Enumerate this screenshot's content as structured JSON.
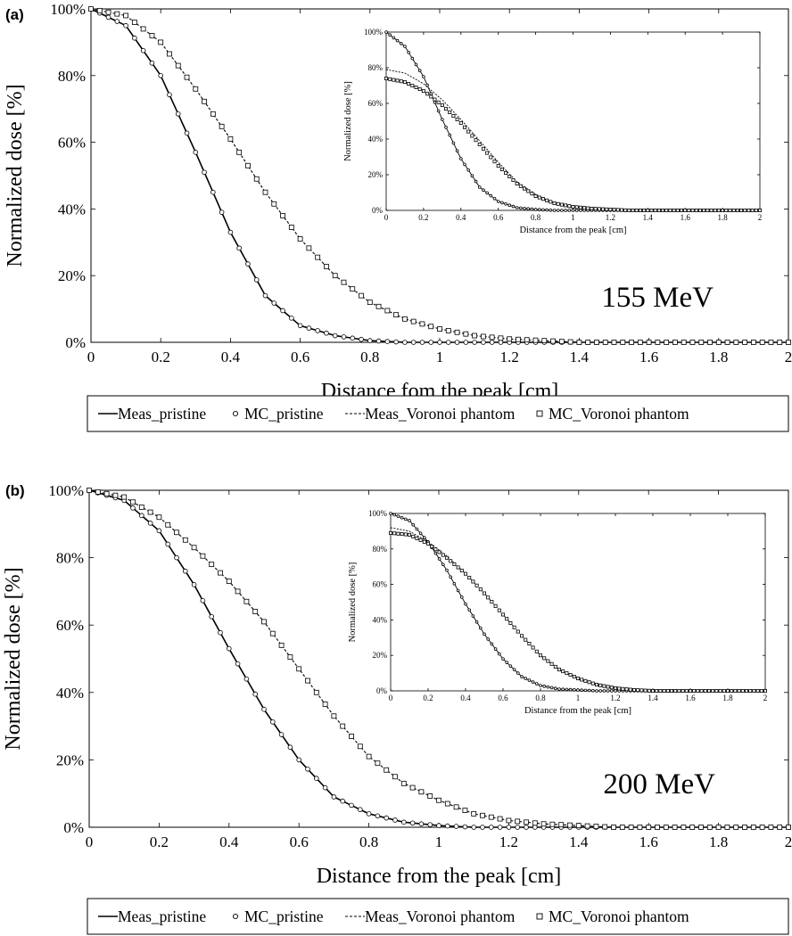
{
  "legend": {
    "meas_pristine": "Meas_pristine",
    "mc_pristine": "MC_pristine",
    "meas_voronoi": "Meas_Voronoi phantom",
    "mc_voronoi": "MC_Voronoi phantom"
  },
  "chart_data": [
    {
      "panel_label": "(a)",
      "type": "line",
      "annotation": "155 MeV",
      "xlabel": "Distance fom the peak [cm]",
      "ylabel": "Normalized dose [%]",
      "xlim": [
        0,
        2
      ],
      "ylim": [
        0,
        100
      ],
      "xticks": [
        "0",
        "0.2",
        "0.4",
        "0.6",
        "0.8",
        "1",
        "1.2",
        "1.4",
        "1.6",
        "1.8",
        "2"
      ],
      "yticks": [
        "0%",
        "20%",
        "40%",
        "60%",
        "80%",
        "100%"
      ],
      "x": [
        0,
        0.1,
        0.2,
        0.3,
        0.4,
        0.5,
        0.6,
        0.7,
        0.8,
        0.9,
        1.0,
        1.1,
        1.2,
        1.3,
        1.4,
        1.5,
        1.6,
        1.7,
        1.8,
        1.9,
        2.0
      ],
      "series": [
        {
          "name": "Meas_pristine",
          "style": "solid",
          "values": [
            100,
            95,
            80,
            57,
            33,
            14,
            5,
            2,
            0.5,
            0,
            0,
            0,
            0,
            0,
            0,
            0,
            0,
            0,
            0,
            0,
            0
          ]
        },
        {
          "name": "MC_pristine",
          "style": "circle",
          "values": [
            100,
            95,
            80,
            57,
            33,
            14,
            5,
            2,
            0.5,
            0,
            0,
            0,
            0,
            0,
            0,
            0,
            0,
            0,
            0,
            0,
            0
          ]
        },
        {
          "name": "Meas_Voronoi phantom",
          "style": "dashed",
          "values": [
            100,
            98,
            90,
            76,
            61,
            45,
            31,
            20,
            12,
            7,
            4,
            2,
            1,
            0.5,
            0,
            0,
            0,
            0,
            0,
            0,
            0
          ]
        },
        {
          "name": "MC_Voronoi phantom",
          "style": "square",
          "values": [
            100,
            98,
            90,
            76,
            61,
            45,
            31,
            20,
            12,
            7,
            4,
            2,
            1,
            0.5,
            0,
            0,
            0,
            0,
            0,
            0,
            0
          ]
        }
      ],
      "inset": {
        "xlabel": "Distance from the peak [cm]",
        "ylabel": "Normalized dose [%]",
        "xlim": [
          0,
          2
        ],
        "ylim": [
          0,
          100
        ],
        "xticks": [
          "0",
          "0.2",
          "0.4",
          "0.6",
          "0.8",
          "1",
          "1.2",
          "1.4",
          "1.6",
          "1.8",
          "2"
        ],
        "yticks": [
          "0%",
          "20%",
          "40%",
          "60%",
          "80%",
          "100%"
        ],
        "x": [
          0,
          0.1,
          0.2,
          0.3,
          0.4,
          0.5,
          0.6,
          0.7,
          0.8,
          0.9,
          1.0,
          1.1,
          1.2,
          1.3,
          1.4,
          1.5,
          1.6,
          1.7,
          1.8,
          1.9,
          2.0
        ],
        "series": [
          {
            "name": "Meas_pristine",
            "style": "solid",
            "values": [
              100,
              92,
              75,
              51,
              29,
              13,
              5,
              1.5,
              0.5,
              0,
              0,
              0,
              0,
              0,
              0,
              0,
              0,
              0,
              0,
              0,
              0
            ]
          },
          {
            "name": "MC_pristine",
            "style": "circle",
            "values": [
              100,
              92,
              75,
              51,
              29,
              13,
              5,
              1.5,
              0.5,
              0,
              0,
              0,
              0,
              0,
              0,
              0,
              0,
              0,
              0,
              0,
              0
            ]
          },
          {
            "name": "Meas_Voronoi phantom",
            "style": "dashed",
            "values": [
              79,
              77,
              71,
              62,
              51,
              39,
              27,
              16,
              9,
              4,
              2,
              1,
              0.5,
              0,
              0,
              0,
              0,
              0,
              0,
              0,
              0
            ]
          },
          {
            "name": "MC_Voronoi phantom",
            "style": "square",
            "values": [
              74,
              72,
              67,
              59,
              49,
              37,
              25,
              15,
              8,
              4,
              2,
              1,
              0.5,
              0,
              0,
              0,
              0,
              0,
              0,
              0,
              0
            ]
          }
        ]
      }
    },
    {
      "panel_label": "(b)",
      "type": "line",
      "annotation": "200 MeV",
      "xlabel": "Distance from the peak [cm]",
      "ylabel": "Normalized dose [%]",
      "xlim": [
        0,
        2
      ],
      "ylim": [
        0,
        100
      ],
      "xticks": [
        "0",
        "0.2",
        "0.4",
        "0.6",
        "0.8",
        "1",
        "1.2",
        "1.4",
        "1.6",
        "1.8",
        "2"
      ],
      "yticks": [
        "0%",
        "20%",
        "40%",
        "60%",
        "80%",
        "100%"
      ],
      "x": [
        0,
        0.1,
        0.2,
        0.3,
        0.4,
        0.5,
        0.6,
        0.7,
        0.8,
        0.9,
        1.0,
        1.1,
        1.2,
        1.3,
        1.4,
        1.5,
        1.6,
        1.7,
        1.8,
        1.9,
        2.0
      ],
      "series": [
        {
          "name": "Meas_pristine",
          "style": "solid",
          "values": [
            100,
            97,
            88,
            72,
            53,
            35,
            20,
            9,
            4,
            1.5,
            0.5,
            0,
            0,
            0,
            0,
            0,
            0,
            0,
            0,
            0,
            0
          ]
        },
        {
          "name": "MC_pristine",
          "style": "circle",
          "values": [
            100,
            97,
            88,
            72,
            53,
            35,
            20,
            9,
            4,
            1.5,
            0.5,
            0,
            0,
            0,
            0,
            0,
            0,
            0,
            0,
            0,
            0
          ]
        },
        {
          "name": "Meas_Voronoi phantom",
          "style": "dashed",
          "values": [
            100,
            98,
            92,
            83,
            73,
            61,
            47,
            33,
            21,
            13,
            8,
            4,
            2,
            1,
            0.5,
            0,
            0,
            0,
            0,
            0,
            0
          ]
        },
        {
          "name": "MC_Voronoi phantom",
          "style": "square",
          "values": [
            100,
            98,
            92,
            83,
            73,
            61,
            47,
            33,
            21,
            13,
            8,
            4,
            2,
            1,
            0.5,
            0,
            0,
            0,
            0,
            0,
            0
          ]
        }
      ],
      "inset": {
        "xlabel": "Distance from the peak [cm]",
        "ylabel": "Normalized dose [%]",
        "xlim": [
          0,
          2
        ],
        "ylim": [
          0,
          100
        ],
        "xticks": [
          "0",
          "0.2",
          "0.4",
          "0.6",
          "0.8",
          "1",
          "1.2",
          "1.4",
          "1.6",
          "1.8",
          "2"
        ],
        "yticks": [
          "0%",
          "20%",
          "40%",
          "60%",
          "80%",
          "100%"
        ],
        "x": [
          0,
          0.1,
          0.2,
          0.3,
          0.4,
          0.5,
          0.6,
          0.7,
          0.8,
          0.9,
          1.0,
          1.1,
          1.2,
          1.3,
          1.4,
          1.5,
          1.6,
          1.7,
          1.8,
          1.9,
          2.0
        ],
        "series": [
          {
            "name": "Meas_pristine",
            "style": "solid",
            "values": [
              100,
              96,
              84,
              68,
              49,
              32,
              18,
              8,
              3,
              1,
              0.5,
              0,
              0,
              0,
              0,
              0,
              0,
              0,
              0,
              0,
              0
            ]
          },
          {
            "name": "MC_pristine",
            "style": "circle",
            "values": [
              100,
              96,
              84,
              68,
              49,
              32,
              18,
              8,
              3,
              1,
              0.5,
              0,
              0,
              0,
              0,
              0,
              0,
              0,
              0,
              0,
              0
            ]
          },
          {
            "name": "Meas_Voronoi phantom",
            "style": "dashed",
            "values": [
              92,
              90,
              84,
              76,
              66,
              55,
              43,
              31,
              20,
              12,
              7,
              3.5,
              1.5,
              0.5,
              0,
              0,
              0,
              0,
              0,
              0,
              0
            ]
          },
          {
            "name": "MC_Voronoi phantom",
            "style": "square",
            "values": [
              89,
              88,
              83,
              75,
              66,
              55,
              43,
              31,
              20,
              12,
              7,
              3.5,
              1.5,
              0.5,
              0,
              0,
              0,
              0,
              0,
              0,
              0
            ]
          }
        ]
      }
    }
  ]
}
